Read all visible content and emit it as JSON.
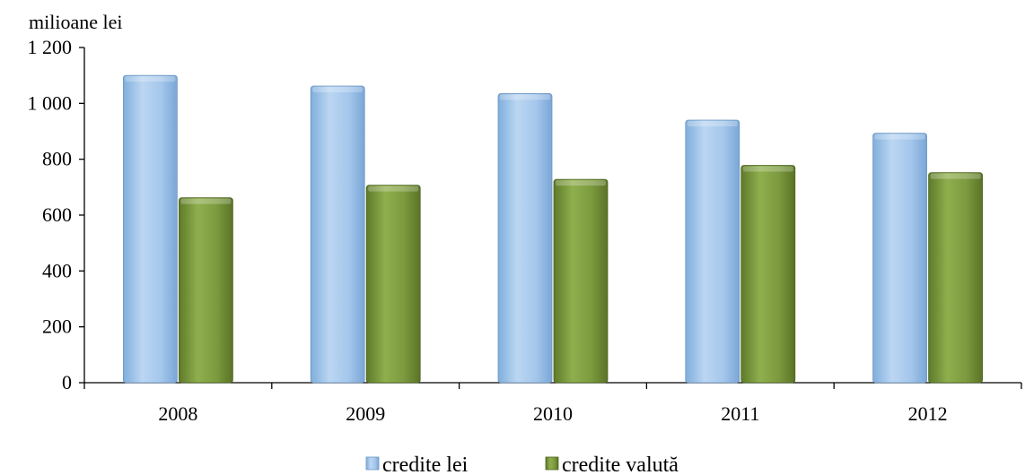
{
  "chart_data": {
    "type": "bar",
    "title": "",
    "ylabel": "milioane lei",
    "xlabel": "",
    "categories": [
      "2008",
      "2009",
      "2010",
      "2011",
      "2012"
    ],
    "series": [
      {
        "name": "credite lei",
        "color": "#9DC3E6",
        "values": [
          1100,
          1062,
          1035,
          940,
          893
        ]
      },
      {
        "name": "credite valută",
        "color": "#77933C",
        "values": [
          662,
          707,
          728,
          778,
          752
        ]
      }
    ],
    "ylim": [
      0,
      1200
    ],
    "yticks": [
      0,
      200,
      400,
      600,
      800,
      1000,
      1200
    ],
    "ytick_labels": [
      "0",
      "200",
      "400",
      "600",
      "800",
      "1 000",
      "1 200"
    ],
    "grid": false,
    "legend_position": "bottom"
  }
}
